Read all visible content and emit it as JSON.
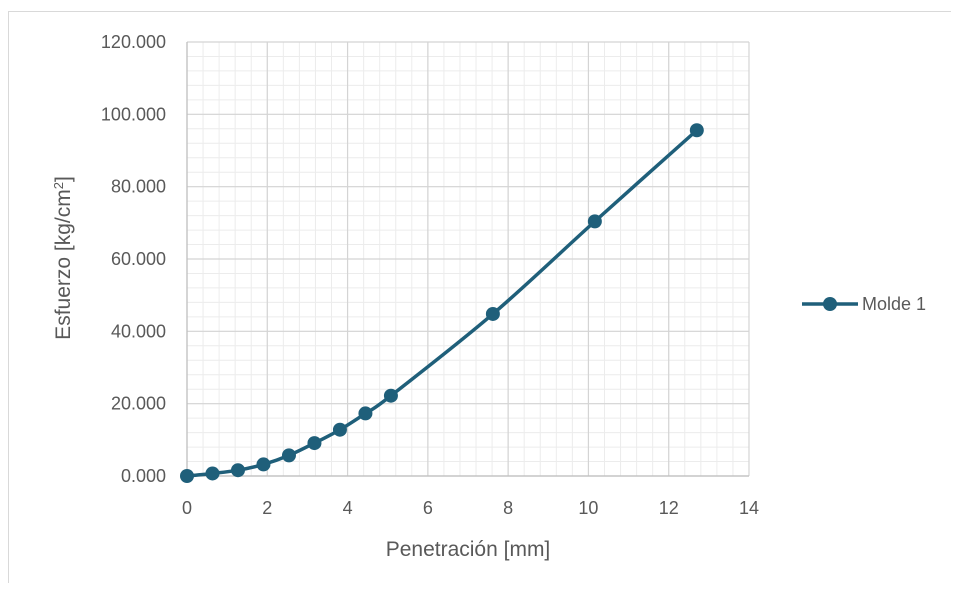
{
  "chart_data": {
    "type": "line",
    "xlabel": "Penetración [mm]",
    "ylabel": "Esfuerzo [kg/cm",
    "ylabel_superscript": "2",
    "ylabel_suffix": "]",
    "xlim": [
      0,
      14
    ],
    "ylim": [
      0,
      120
    ],
    "x_ticks": [
      0,
      2,
      4,
      6,
      8,
      10,
      12,
      14
    ],
    "x_tick_labels": [
      "0",
      "2",
      "4",
      "6",
      "8",
      "10",
      "12",
      "14"
    ],
    "y_ticks": [
      0,
      20,
      40,
      60,
      80,
      100,
      120
    ],
    "y_tick_labels": [
      "0.000",
      "20.000",
      "40.000",
      "60.000",
      "80.000",
      "100.000",
      "120.000"
    ],
    "grid": true,
    "minor_grid": true,
    "legend_position": "right",
    "color": "#1f5f7a",
    "series": [
      {
        "name": "Molde 1",
        "x": [
          0,
          0.635,
          1.27,
          1.905,
          2.54,
          3.175,
          3.81,
          4.445,
          5.08,
          7.62,
          10.16,
          12.7
        ],
        "y": [
          0.0,
          0.7,
          1.6,
          3.2,
          5.7,
          9.1,
          12.8,
          17.3,
          22.2,
          44.8,
          70.4,
          95.6
        ]
      }
    ]
  }
}
